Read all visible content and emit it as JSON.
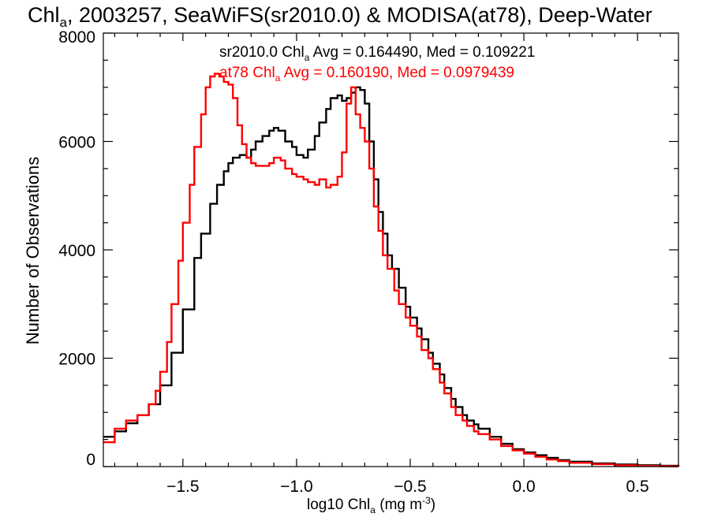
{
  "chart_data": {
    "type": "line",
    "title": {
      "main": "Chl",
      "sub": "a",
      "rest": ", 2003257, SeaWiFS(sr2010.0) & MODISA(at78), Deep-Water"
    },
    "xlabel": {
      "main": "log10 Chl",
      "sub": "a",
      "unit": " (mg m",
      "sup": "-3",
      "close": ")"
    },
    "ylabel": "Number of Observations",
    "xlim": [
      -1.85,
      0.68
    ],
    "ylim": [
      0,
      8000
    ],
    "x_ticks": [
      -1.5,
      -1.0,
      -0.5,
      0.0,
      0.5
    ],
    "x_tick_labels": [
      "−1.5",
      "−1.0",
      "−0.5",
      "0.0",
      "0.5"
    ],
    "y_ticks": [
      0,
      2000,
      4000,
      6000,
      8000
    ],
    "y_tick_labels": [
      "0",
      "2000",
      "4000",
      "6000",
      "8000"
    ],
    "grid": false,
    "annotations": [
      {
        "prefix": "sr2010.0 Chl",
        "sub": "a",
        "suffix": " Avg = 0.164490, Med = 0.109221",
        "color": "#000000"
      },
      {
        "prefix": "at78 Chl",
        "sub": "a",
        "suffix": " Avg = 0.160190, Med = 0.0979439",
        "color": "#ff0000"
      }
    ],
    "series": [
      {
        "color": "#000000",
        "step": true,
        "x": [
          -1.85,
          -1.8,
          -1.75,
          -1.7,
          -1.65,
          -1.6,
          -1.55,
          -1.5,
          -1.45,
          -1.42,
          -1.38,
          -1.35,
          -1.32,
          -1.3,
          -1.28,
          -1.25,
          -1.22,
          -1.2,
          -1.18,
          -1.15,
          -1.12,
          -1.1,
          -1.08,
          -1.05,
          -1.02,
          -1.0,
          -0.97,
          -0.95,
          -0.92,
          -0.9,
          -0.87,
          -0.85,
          -0.82,
          -0.8,
          -0.78,
          -0.76,
          -0.74,
          -0.72,
          -0.7,
          -0.68,
          -0.66,
          -0.64,
          -0.62,
          -0.6,
          -0.58,
          -0.55,
          -0.52,
          -0.5,
          -0.47,
          -0.45,
          -0.42,
          -0.4,
          -0.37,
          -0.35,
          -0.32,
          -0.3,
          -0.27,
          -0.25,
          -0.22,
          -0.2,
          -0.15,
          -0.1,
          -0.05,
          0.0,
          0.05,
          0.1,
          0.15,
          0.2,
          0.3,
          0.4,
          0.5,
          0.6,
          0.68
        ],
        "y": [
          550,
          650,
          800,
          950,
          1150,
          1500,
          2100,
          2900,
          3850,
          4300,
          4850,
          5200,
          5450,
          5600,
          5700,
          5750,
          5700,
          5850,
          6000,
          6100,
          6200,
          6250,
          6200,
          6000,
          5900,
          5750,
          5700,
          5850,
          6100,
          6350,
          6600,
          6800,
          6850,
          6750,
          6800,
          6900,
          7000,
          6950,
          6700,
          6000,
          5300,
          4700,
          4300,
          3900,
          3650,
          3300,
          2950,
          2750,
          2550,
          2350,
          2100,
          1900,
          1700,
          1450,
          1250,
          1100,
          950,
          850,
          780,
          700,
          550,
          420,
          320,
          260,
          210,
          160,
          120,
          90,
          60,
          40,
          25,
          15,
          8
        ]
      },
      {
        "color": "#ff0000",
        "step": true,
        "x": [
          -1.85,
          -1.8,
          -1.75,
          -1.7,
          -1.65,
          -1.62,
          -1.6,
          -1.57,
          -1.55,
          -1.52,
          -1.5,
          -1.47,
          -1.45,
          -1.42,
          -1.4,
          -1.38,
          -1.36,
          -1.34,
          -1.32,
          -1.3,
          -1.28,
          -1.26,
          -1.24,
          -1.22,
          -1.2,
          -1.18,
          -1.15,
          -1.12,
          -1.1,
          -1.07,
          -1.05,
          -1.02,
          -1.0,
          -0.97,
          -0.95,
          -0.92,
          -0.9,
          -0.87,
          -0.85,
          -0.82,
          -0.8,
          -0.78,
          -0.76,
          -0.74,
          -0.72,
          -0.7,
          -0.68,
          -0.66,
          -0.64,
          -0.62,
          -0.6,
          -0.57,
          -0.55,
          -0.52,
          -0.5,
          -0.47,
          -0.45,
          -0.42,
          -0.4,
          -0.37,
          -0.35,
          -0.32,
          -0.3,
          -0.27,
          -0.25,
          -0.22,
          -0.2,
          -0.15,
          -0.1,
          -0.05,
          0.0,
          0.05,
          0.1,
          0.15,
          0.2,
          0.3,
          0.4,
          0.5,
          0.6,
          0.68
        ],
        "y": [
          450,
          700,
          850,
          950,
          1150,
          1400,
          1750,
          2300,
          3000,
          3800,
          4500,
          5200,
          5900,
          6500,
          7000,
          7200,
          7250,
          7200,
          7100,
          7050,
          6800,
          6300,
          5950,
          5700,
          5600,
          5550,
          5550,
          5600,
          5700,
          5650,
          5500,
          5400,
          5350,
          5300,
          5250,
          5200,
          5300,
          5150,
          5200,
          5350,
          5800,
          6700,
          7000,
          6500,
          6250,
          6000,
          5500,
          4800,
          4350,
          3900,
          3650,
          3250,
          3000,
          2750,
          2600,
          2400,
          2150,
          2000,
          1800,
          1550,
          1350,
          1100,
          950,
          850,
          750,
          650,
          600,
          500,
          380,
          300,
          240,
          180,
          130,
          100,
          70,
          45,
          25,
          12,
          6,
          3
        ]
      }
    ]
  }
}
